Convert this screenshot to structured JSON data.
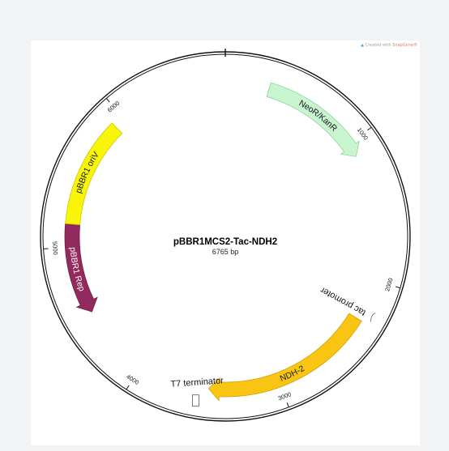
{
  "plasmid": {
    "name": "pBBR1MCS2-Tac-NDH2",
    "length_label": "6765 bp",
    "length_bp": 6765
  },
  "credit": {
    "prefix": "Created with",
    "brand": "SnapGene®"
  },
  "ticks": [
    {
      "label": "1000",
      "pos": 1000
    },
    {
      "label": "2000",
      "pos": 2000
    },
    {
      "label": "3000",
      "pos": 3000
    },
    {
      "label": "4000",
      "pos": 4000
    },
    {
      "label": "5000",
      "pos": 5000
    },
    {
      "label": "6000",
      "pos": 6000
    }
  ],
  "features": [
    {
      "name": "NeoR/KanR",
      "type": "arrow",
      "start": 310,
      "end": 1100,
      "direction": "forward",
      "color": "#c8f5cf",
      "stroke": "#8fd39a",
      "text_color": "#1a1a1a"
    },
    {
      "name": "tac promoter",
      "type": "promoter",
      "start": 2200,
      "end": 2230,
      "direction": "forward",
      "color": "#ffffff",
      "stroke": "#555555"
    },
    {
      "name": "NDH-2",
      "type": "arrow",
      "start": 2290,
      "end": 3500,
      "direction": "forward",
      "color": "#f8c512",
      "stroke": "#d8a000",
      "text_color": "#1a1a1a"
    },
    {
      "name": "T7 terminator",
      "type": "terminator",
      "start": 3550,
      "end": 3600,
      "direction": "forward",
      "color": "#ffffff",
      "stroke": "#555555"
    },
    {
      "name": "pBBR1 Rep",
      "type": "arrow",
      "start": 4520,
      "end": 5160,
      "direction": "reverse",
      "color": "#932a5d",
      "stroke": "#6e1f46",
      "text_color": "#ffffff"
    },
    {
      "name": "pBBR1 oriV",
      "type": "bar",
      "start": 5160,
      "end": 5920,
      "direction": "none",
      "color": "#f8f40a",
      "stroke": "#cfc800",
      "text_color": "#1a1a1a"
    }
  ]
}
